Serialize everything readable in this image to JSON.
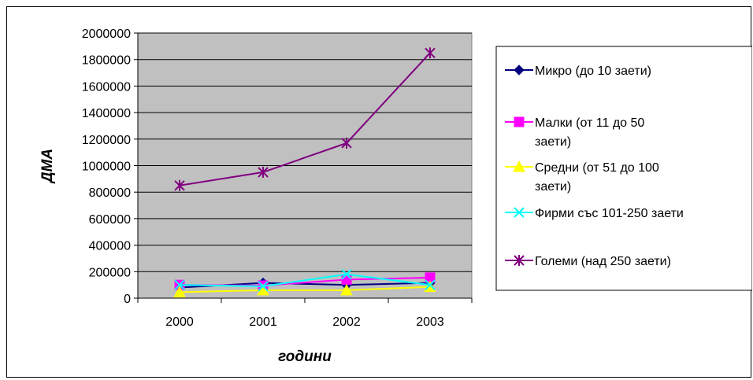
{
  "chart_data": {
    "type": "line",
    "categories": [
      "2000",
      "2001",
      "2002",
      "2003"
    ],
    "xlabel": "години",
    "ylabel": "ДМА",
    "ylim": [
      0,
      2000000
    ],
    "ytick_step": 200000,
    "grid": true,
    "plot_background": "#C0C0C0",
    "legend_position": "right",
    "series": [
      {
        "name": "Микро (до 10 заети)",
        "values": [
          80000,
          115000,
          100000,
          115000
        ],
        "color": "#000080",
        "marker": "diamond"
      },
      {
        "name": "Малки (от 11 до 50 заети)",
        "values": [
          100000,
          95000,
          140000,
          155000
        ],
        "color": "#FF00FF",
        "marker": "square"
      },
      {
        "name": "Средни (от 51 до 100 заети)",
        "values": [
          45000,
          60000,
          60000,
          85000
        ],
        "color": "#FFFF00",
        "marker": "triangle"
      },
      {
        "name": "Фирми със 101-250 заети",
        "values": [
          100000,
          90000,
          180000,
          100000
        ],
        "color": "#00FFFF",
        "marker": "x"
      },
      {
        "name": "Големи (над 250 заети)",
        "values": [
          850000,
          950000,
          1170000,
          1850000
        ],
        "color": "#800080",
        "marker": "star"
      }
    ]
  }
}
